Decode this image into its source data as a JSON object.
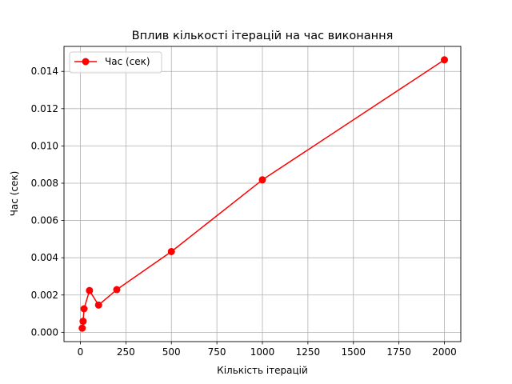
{
  "chart_data": {
    "type": "line",
    "title": "Вплив кількості ітерацій на час виконання",
    "xlabel": "Кількість ітерацій",
    "ylabel": "Час (сек)",
    "xlim": [
      -90,
      2090
    ],
    "ylim": [
      -0.0005,
      0.01534
    ],
    "xticks": [
      0,
      250,
      500,
      750,
      1000,
      1250,
      1500,
      1750,
      2000
    ],
    "xtick_labels": [
      "0",
      "250",
      "500",
      "750",
      "1000",
      "1250",
      "1500",
      "1750",
      "2000"
    ],
    "yticks": [
      0.0,
      0.002,
      0.004,
      0.006,
      0.008,
      0.01,
      0.012,
      0.014
    ],
    "ytick_labels": [
      "0.000",
      "0.002",
      "0.004",
      "0.006",
      "0.008",
      "0.010",
      "0.012",
      "0.014"
    ],
    "grid": true,
    "legend_position": "top-left",
    "series": [
      {
        "name": "Час (сек)",
        "color": "#ff0000",
        "marker": "circle",
        "x": [
          10,
          15,
          20,
          50,
          100,
          200,
          500,
          1000,
          2000
        ],
        "y": [
          0.00022,
          0.00059,
          0.00126,
          0.00224,
          0.00146,
          0.00229,
          0.00433,
          0.00818,
          0.01462
        ]
      }
    ]
  }
}
